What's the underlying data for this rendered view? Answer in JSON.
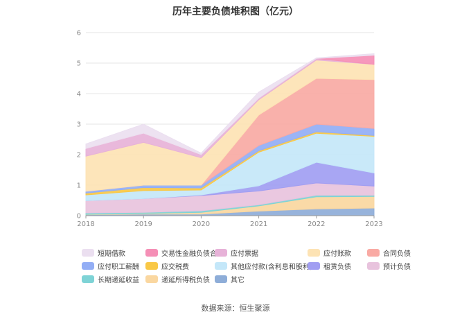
{
  "chart_data": {
    "type": "area",
    "title": "历年主要负债堆积图（亿元）",
    "stacked": true,
    "categories": [
      "2018",
      "2019",
      "2020",
      "2021",
      "2022",
      "2023"
    ],
    "ylim": [
      0,
      6
    ],
    "yticks": [
      "0",
      "1",
      "2",
      "3",
      "4",
      "5",
      "6"
    ],
    "grid": true,
    "legend_position": "bottom",
    "series": [
      {
        "name": "其它",
        "color": "#8eadd8",
        "values": [
          0.03,
          0.05,
          0.05,
          0.15,
          0.22,
          0.25
        ]
      },
      {
        "name": "递延所得税负债",
        "color": "#fad7a0",
        "values": [
          0.01,
          0.02,
          0.06,
          0.17,
          0.4,
          0.38
        ]
      },
      {
        "name": "长期递延收益",
        "color": "#7ed3d6",
        "values": [
          0.05,
          0.04,
          0.05,
          0.04,
          0.05,
          0.04
        ]
      },
      {
        "name": "预计负债",
        "color": "#e8c3dd",
        "values": [
          0.4,
          0.45,
          0.5,
          0.45,
          0.4,
          0.3
        ]
      },
      {
        "name": "租赁负债",
        "color": "#a19ef2",
        "values": [
          0.0,
          0.0,
          0.02,
          0.17,
          0.68,
          0.43
        ]
      },
      {
        "name": "其他应付款(含利息和股利)",
        "color": "#c4e7f9",
        "values": [
          0.19,
          0.26,
          0.16,
          1.1,
          0.95,
          1.2
        ]
      },
      {
        "name": "应交税费",
        "color": "#f9c846",
        "values": [
          0.06,
          0.1,
          0.07,
          0.05,
          0.05,
          0.03
        ]
      },
      {
        "name": "应付职工薪酬",
        "color": "#93aef5",
        "values": [
          0.06,
          0.08,
          0.09,
          0.17,
          0.25,
          0.23
        ]
      },
      {
        "name": "合同负债",
        "color": "#f9aaa4",
        "values": [
          0.0,
          0.0,
          0.0,
          1.0,
          1.5,
          1.6
        ]
      },
      {
        "name": "应付账款",
        "color": "#fde3b4",
        "values": [
          1.15,
          1.4,
          0.9,
          0.5,
          0.6,
          0.5
        ]
      },
      {
        "name": "应付票据",
        "color": "#e7b2d8",
        "values": [
          0.25,
          0.3,
          0.1,
          0.05,
          0.05,
          0.0
        ]
      },
      {
        "name": "交易性金融负债合计",
        "color": "#f58fb6",
        "values": [
          0.0,
          0.0,
          0.0,
          0.0,
          0.0,
          0.3
        ]
      },
      {
        "name": "短期借款",
        "color": "#ebdff0",
        "values": [
          0.15,
          0.3,
          0.05,
          0.2,
          0.02,
          0.05
        ]
      }
    ]
  },
  "legend_order": [
    "短期借款",
    "交易性金融负债合计",
    "应付票据",
    "应付账款",
    "合同负债",
    "应付职工薪酬",
    "应交税费",
    "其他应付款(含利息和股利)",
    "租赁负债",
    "预计负债",
    "长期递延收益",
    "递延所得税负债",
    "其它"
  ],
  "source": "数据来源：恒生聚源"
}
